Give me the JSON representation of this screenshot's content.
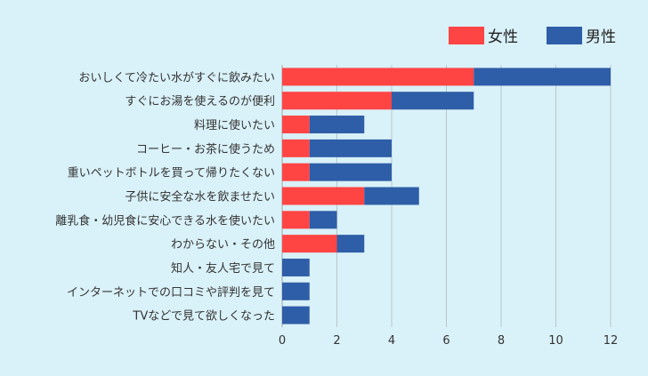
{
  "chart_data": {
    "type": "bar",
    "orientation": "horizontal",
    "stacked": true,
    "categories": [
      "おいしくて冷たい水がすぐに飲みたい",
      "すぐにお湯を使えるのが便利",
      "料理に使いたい",
      "コーヒー・お茶に使うため",
      "重いペットボトルを買って帰りたくない",
      "子供に安全な水を飲ませたい",
      "離乳食・幼児食に安心できる水を使いたい",
      "わからない・その他",
      "知人・友人宅で見て",
      "インターネットでの口コミや評判を見て",
      "TVなどで見て欲しくなった"
    ],
    "series": [
      {
        "name": "女性",
        "color": "#ff4444",
        "values": [
          7,
          4,
          1,
          1,
          1,
          3,
          1,
          2,
          0,
          0,
          0
        ]
      },
      {
        "name": "男性",
        "color": "#2e5ea8",
        "values": [
          5,
          3,
          2,
          3,
          3,
          2,
          1,
          1,
          1,
          1,
          1
        ]
      }
    ],
    "xlim": [
      0,
      12
    ],
    "xticks": [
      0,
      2,
      4,
      6,
      8,
      10,
      12
    ],
    "grid": true,
    "legend": "top-right",
    "title": "",
    "xlabel": "",
    "ylabel": ""
  }
}
